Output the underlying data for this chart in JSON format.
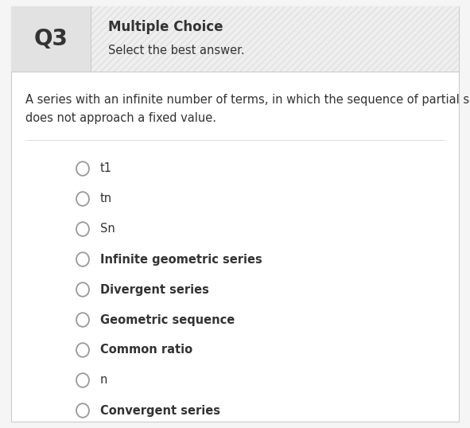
{
  "q_label": "Q3",
  "header_title": "Multiple Choice",
  "header_subtitle": "Select the best answer.",
  "question_text": "A series with an infinite number of terms, in which the sequence of partial sums\ndoes not approach a fixed value.",
  "options": [
    "t1",
    "tn",
    "Sn",
    "Infinite geometric series",
    "Divergent series",
    "Geometric sequence",
    "Common ratio",
    "n",
    "Convergent series"
  ],
  "bold_options": [
    3,
    4,
    5,
    6,
    8
  ],
  "bg_header_left": "#e2e2e2",
  "bg_header_right": "#efefef",
  "bg_main": "#ffffff",
  "outer_bg": "#f5f5f5",
  "border_color": "#cccccc",
  "text_color": "#333333",
  "circle_color": "#999999",
  "hatch_color": "#e0e0e0",
  "q_label_fontsize": 20,
  "title_fontsize": 12,
  "subtitle_fontsize": 10.5,
  "question_fontsize": 10.5,
  "option_fontsize": 10.5,
  "fig_width": 5.91,
  "fig_height": 5.38,
  "dpi": 100
}
